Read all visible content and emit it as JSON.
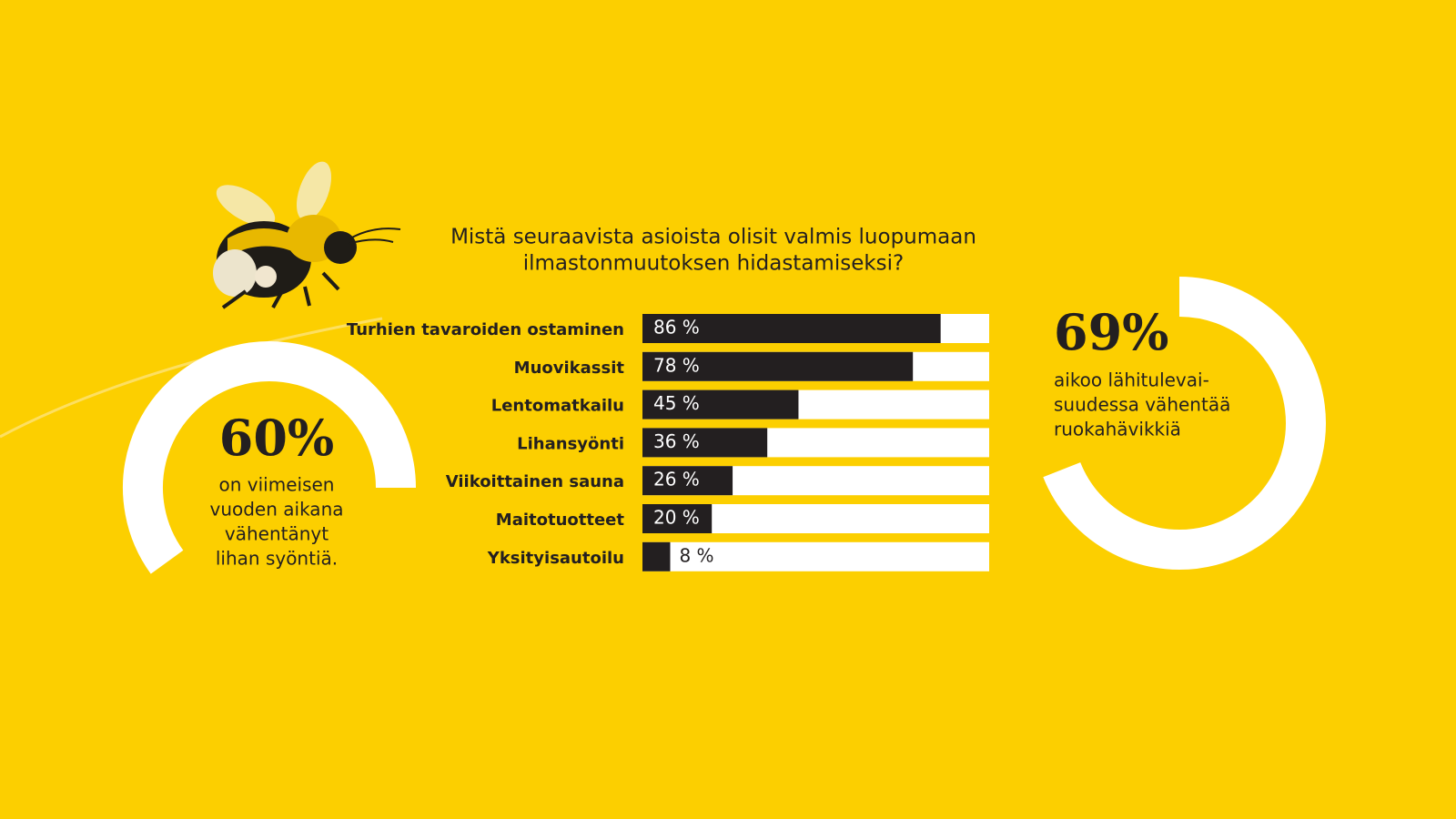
{
  "chart_data": [
    {
      "type": "hbar",
      "title_lines": [
        "Mistä seuraavista asioista olisit valmis luopumaan",
        "ilmastonmuutoksen hidastamiseksi?"
      ],
      "categories": [
        "Turhien tavaroiden ostaminen",
        "Muovikassit",
        "Lentomatkailu",
        "Lihansyönti",
        "Viikoittainen sauna",
        "Maitotuotteet",
        "Yksityisautoilu"
      ],
      "values": [
        86,
        78,
        45,
        36,
        26,
        20,
        8
      ],
      "value_labels": [
        "86 %",
        "78 %",
        "45 %",
        "36 %",
        "26 %",
        "20 %",
        "8 %"
      ],
      "xlim": [
        0,
        100
      ],
      "color": "#231f20",
      "track_color": "#ffffff"
    },
    {
      "type": "gauge",
      "values": [
        60
      ],
      "value_labels": [
        "60%"
      ],
      "ylim": [
        0,
        100
      ],
      "caption_lines": [
        "on viimeisen",
        "vuoden aikana",
        "vähentänyt",
        "lihan syöntiä."
      ],
      "color": "#ffffff"
    },
    {
      "type": "gauge",
      "values": [
        69
      ],
      "value_labels": [
        "69%"
      ],
      "ylim": [
        0,
        100
      ],
      "caption_lines": [
        "aikoo lähitulevai-",
        "suudessa vähentää",
        "ruokahävikkiä"
      ],
      "color": "#ffffff"
    }
  ]
}
